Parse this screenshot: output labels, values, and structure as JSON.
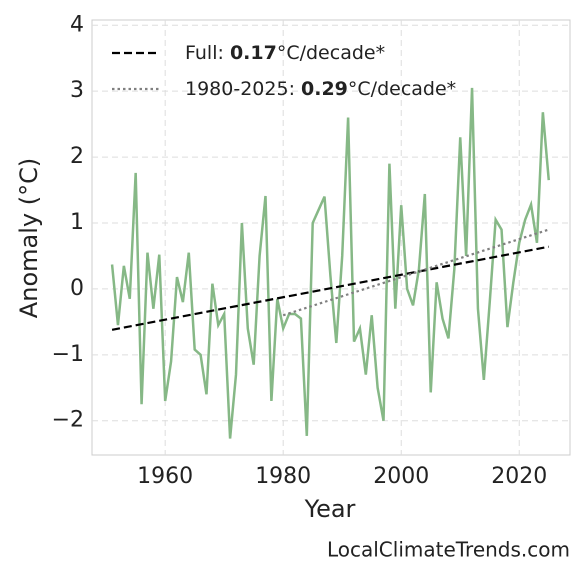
{
  "chart_data": {
    "type": "line",
    "xlabel": "Year",
    "ylabel": "Anomaly (°C)",
    "watermark": "LocalClimateTrends.com",
    "xlim": [
      1947.6,
      2028.6
    ],
    "xticks": [
      1960,
      1980,
      2000,
      2020
    ],
    "ylim": [
      -2.52,
      4.08
    ],
    "yticks": [
      {
        "value": -2,
        "label": "−2"
      },
      {
        "value": -1,
        "label": "−1"
      },
      0,
      1,
      2,
      3,
      4
    ],
    "grid": true,
    "legend": "upper left",
    "series": [
      {
        "color": "#86b886",
        "style": "solid",
        "x": [
          1951,
          1952,
          1953,
          1954,
          1955,
          1956,
          1957,
          1958,
          1959,
          1960,
          1961,
          1962,
          1963,
          1964,
          1965,
          1966,
          1967,
          1968,
          1969,
          1970,
          1971,
          1972,
          1973,
          1974,
          1975,
          1976,
          1977,
          1978,
          1979,
          1980,
          1981,
          1982,
          1983,
          1984,
          1985,
          1986,
          1987,
          1988,
          1989,
          1990,
          1991,
          1992,
          1993,
          1994,
          1995,
          1996,
          1997,
          1998,
          1999,
          2000,
          2001,
          2002,
          2003,
          2004,
          2005,
          2006,
          2007,
          2008,
          2009,
          2010,
          2011,
          2012,
          2013,
          2014,
          2015,
          2016,
          2017,
          2018,
          2019,
          2020,
          2021,
          2022,
          2023,
          2024,
          2025
        ],
        "values": [
          0.37,
          -0.55,
          0.35,
          -0.15,
          1.76,
          -1.75,
          0.55,
          -0.3,
          0.52,
          -1.7,
          -1.1,
          0.18,
          -0.2,
          0.55,
          -0.92,
          -1.0,
          -1.6,
          0.08,
          -0.55,
          -0.38,
          -2.27,
          -1.3,
          1.0,
          -0.6,
          -1.15,
          0.5,
          1.41,
          -1.7,
          -0.15,
          -0.6,
          -0.38,
          -0.38,
          -0.45,
          -2.23,
          1.0,
          1.2,
          1.4,
          0.2,
          -0.82,
          0.5,
          2.6,
          -0.8,
          -0.6,
          -1.3,
          -0.4,
          -1.5,
          -2.0,
          1.9,
          -0.3,
          1.27,
          0.0,
          -0.25,
          0.3,
          1.44,
          -1.57,
          0.1,
          -0.45,
          -0.75,
          0.3,
          2.3,
          0.5,
          3.05,
          -0.3,
          -1.38,
          -0.2,
          1.05,
          0.9,
          -0.58,
          0.1,
          0.7,
          1.05,
          1.28,
          0.7,
          2.68,
          1.65
        ]
      },
      {
        "name": "Full:",
        "slope": 0.17,
        "slope_unit": "°C/decade*",
        "color": "#000000",
        "style": "dashed",
        "x": [
          1951,
          2025
        ],
        "values": [
          -0.62,
          0.64
        ]
      },
      {
        "name": "1980-2025:",
        "slope": 0.29,
        "slope_unit": "°C/decade*",
        "color": "#808080",
        "style": "dotted",
        "x": [
          1980,
          2025
        ],
        "values": [
          -0.4,
          0.9
        ]
      }
    ]
  }
}
